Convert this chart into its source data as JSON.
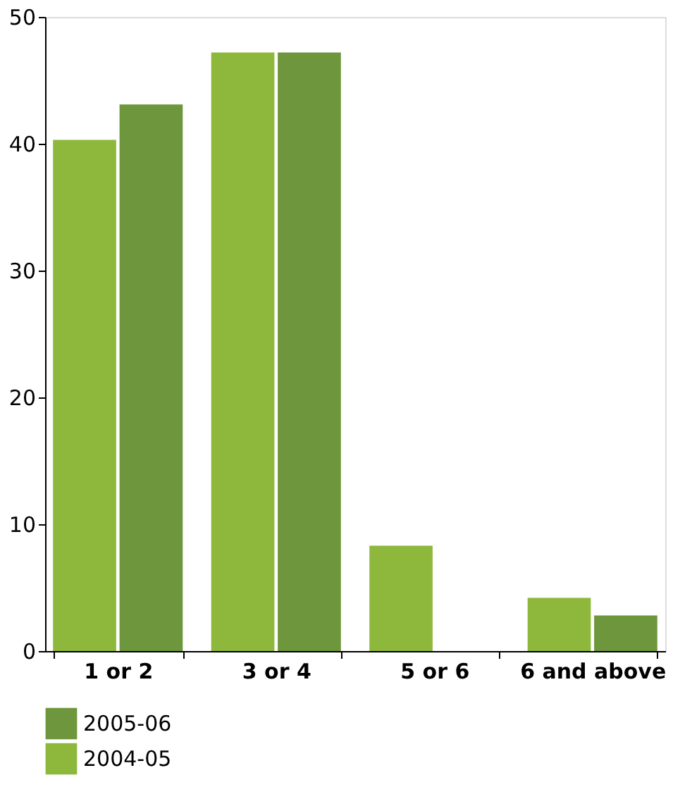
{
  "chart_data": {
    "type": "bar",
    "categories": [
      "1 or 2",
      "3 or 4",
      "5 or 6",
      "6 and above"
    ],
    "series": [
      {
        "name": "2004-05",
        "color": "#8db83c",
        "values": [
          40.3,
          47.2,
          8.3,
          4.2
        ]
      },
      {
        "name": "2005-06",
        "color": "#6e963c",
        "values": [
          43.1,
          47.2,
          0,
          2.8
        ]
      }
    ],
    "ylim": [
      0,
      50
    ],
    "yticks": [
      0,
      10,
      20,
      30,
      40,
      50
    ],
    "grid": false,
    "legend": "bottom"
  }
}
